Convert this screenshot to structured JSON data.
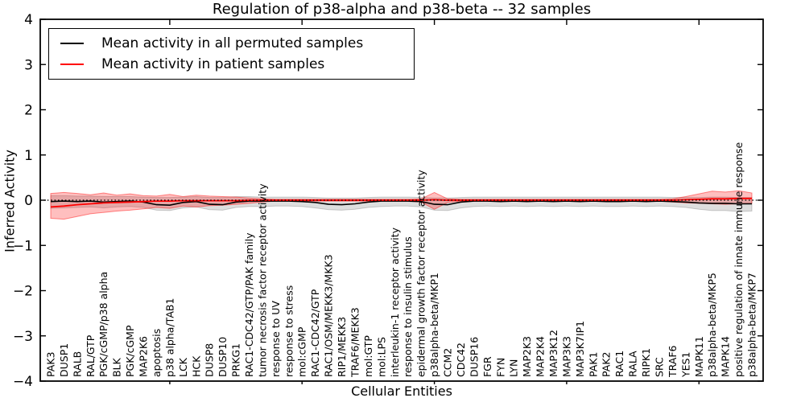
{
  "chart_data": {
    "type": "line",
    "title": "Regulation of p38-alpha and p38-beta -- 32 samples",
    "xlabel": "Cellular Entities",
    "ylabel": "Inferred Activity",
    "ylim": [
      -4,
      4
    ],
    "yticks": [
      4,
      3,
      2,
      1,
      0,
      -1,
      -2,
      -3,
      -4
    ],
    "ytick_labels": [
      "4",
      "3",
      "2",
      "1",
      "0",
      "−1",
      "−2",
      "−3",
      "−4"
    ],
    "xticks_at_category_index": [
      9,
      19,
      29,
      39,
      49
    ],
    "grid": false,
    "legend_position": "upper left",
    "background_color": "#ffffff",
    "axis_color": "#000000",
    "zero_line": {
      "color": "#000000",
      "style": "dotted",
      "y": 0
    },
    "categories": [
      "PAK3",
      "DUSP1",
      "RALB",
      "RAL/GTP",
      "PGK/cGMP/p38 alpha",
      "BLK",
      "PGK/cGMP",
      "MAP2K6",
      "apoptosis",
      "p38 alpha/TAB1",
      "LCK",
      "HCK",
      "DUSP8",
      "DUSP10",
      "PRKG1",
      "RAC1-CDC42/GTP/PAK family",
      "tumor necrosis factor receptor activity",
      "response to UV",
      "response to stress",
      "mol:cGMP",
      "RAC1-CDC42/GTP",
      "RAC1/OSM/MEKK3/MKK3",
      "RIP1/MEKK3",
      "TRAF6/MEKK3",
      "mol:GTP",
      "mol:LPS",
      "interleukin-1 receptor activity",
      "response to insulin stimulus",
      "epidermal growth factor receptor activity",
      "p38alpha-beta/MKP1",
      "CCM2",
      "CDC42",
      "DUSP16",
      "FGR",
      "FYN",
      "LYN",
      "MAP2K3",
      "MAP2K4",
      "MAP3K12",
      "MAP3K3",
      "MAP3K7IP1",
      "PAK1",
      "PAK2",
      "RAC1",
      "RALA",
      "RIPK1",
      "SRC",
      "TRAF6",
      "YES1",
      "MAPK11",
      "p38alpha-beta/MKP5",
      "MAPK14",
      "positive regulation of innate immune response",
      "p38alpha-beta/MKP7"
    ],
    "series": [
      {
        "name": "Mean activity in all permuted samples",
        "color": "#000000",
        "band_color": "#000000",
        "band_alpha": 0.13,
        "values": [
          -0.03,
          -0.02,
          -0.03,
          -0.02,
          -0.04,
          -0.03,
          -0.02,
          -0.04,
          -0.1,
          -0.11,
          -0.05,
          -0.03,
          -0.09,
          -0.1,
          -0.04,
          -0.02,
          -0.02,
          -0.02,
          -0.02,
          -0.03,
          -0.05,
          -0.09,
          -0.1,
          -0.08,
          -0.04,
          -0.02,
          -0.02,
          -0.02,
          -0.03,
          -0.09,
          -0.1,
          -0.04,
          -0.02,
          -0.02,
          -0.03,
          -0.02,
          -0.03,
          -0.02,
          -0.03,
          -0.02,
          -0.03,
          -0.02,
          -0.03,
          -0.03,
          -0.02,
          -0.03,
          -0.02,
          -0.03,
          -0.04,
          -0.06,
          -0.07,
          -0.07,
          -0.08,
          -0.08
        ],
        "upper": [
          0.1,
          0.1,
          0.09,
          0.09,
          0.08,
          0.08,
          0.08,
          0.07,
          0.06,
          0.06,
          0.07,
          0.08,
          0.06,
          0.06,
          0.08,
          0.08,
          0.07,
          0.07,
          0.07,
          0.07,
          0.06,
          0.05,
          0.05,
          0.05,
          0.06,
          0.07,
          0.07,
          0.07,
          0.06,
          0.05,
          0.05,
          0.06,
          0.07,
          0.07,
          0.07,
          0.07,
          0.07,
          0.07,
          0.07,
          0.07,
          0.07,
          0.07,
          0.07,
          0.07,
          0.07,
          0.07,
          0.07,
          0.06,
          0.06,
          0.06,
          0.07,
          0.07,
          0.06,
          0.06
        ],
        "lower": [
          -0.18,
          -0.17,
          -0.16,
          -0.15,
          -0.17,
          -0.15,
          -0.14,
          -0.16,
          -0.22,
          -0.23,
          -0.17,
          -0.15,
          -0.21,
          -0.22,
          -0.16,
          -0.14,
          -0.14,
          -0.13,
          -0.13,
          -0.14,
          -0.17,
          -0.21,
          -0.22,
          -0.2,
          -0.16,
          -0.14,
          -0.13,
          -0.13,
          -0.15,
          -0.22,
          -0.23,
          -0.17,
          -0.14,
          -0.13,
          -0.14,
          -0.13,
          -0.14,
          -0.13,
          -0.14,
          -0.13,
          -0.14,
          -0.13,
          -0.14,
          -0.14,
          -0.13,
          -0.14,
          -0.13,
          -0.14,
          -0.16,
          -0.2,
          -0.23,
          -0.23,
          -0.25,
          -0.24
        ]
      },
      {
        "name": "Mean activity in patient samples",
        "color": "#ff0000",
        "band_color": "#ff0000",
        "band_alpha": 0.25,
        "values": [
          -0.15,
          -0.13,
          -0.1,
          -0.08,
          -0.06,
          -0.05,
          -0.04,
          -0.03,
          -0.02,
          -0.02,
          -0.01,
          -0.01,
          -0.01,
          -0.01,
          -0.01,
          0,
          0,
          0,
          0,
          0,
          0,
          0,
          0,
          0,
          0,
          0,
          0,
          0,
          0,
          0.01,
          0,
          0,
          0,
          0,
          0,
          0,
          0,
          0,
          0,
          0,
          0,
          0,
          0,
          0,
          0,
          0,
          0,
          0,
          0.01,
          0.02,
          0.03,
          0.03,
          0.04,
          0.04
        ],
        "upper": [
          0.15,
          0.17,
          0.15,
          0.12,
          0.16,
          0.11,
          0.14,
          0.1,
          0.09,
          0.13,
          0.08,
          0.11,
          0.09,
          0.08,
          0.07,
          0.05,
          0.03,
          0.02,
          0.02,
          0.02,
          0.02,
          0.02,
          0.02,
          0.02,
          0.02,
          0.02,
          0.02,
          0.02,
          0.03,
          0.17,
          0.03,
          0.02,
          0.02,
          0.02,
          0.02,
          0.02,
          0.02,
          0.02,
          0.02,
          0.02,
          0.02,
          0.02,
          0.02,
          0.02,
          0.02,
          0.02,
          0.02,
          0.03,
          0.08,
          0.14,
          0.2,
          0.18,
          0.21,
          0.16
        ],
        "lower": [
          -0.4,
          -0.42,
          -0.36,
          -0.3,
          -0.27,
          -0.24,
          -0.22,
          -0.19,
          -0.16,
          -0.18,
          -0.13,
          -0.15,
          -0.12,
          -0.11,
          -0.09,
          -0.07,
          -0.04,
          -0.02,
          -0.02,
          -0.02,
          -0.02,
          -0.02,
          -0.02,
          -0.02,
          -0.02,
          -0.02,
          -0.02,
          -0.02,
          -0.04,
          -0.2,
          -0.05,
          -0.02,
          -0.02,
          -0.02,
          -0.02,
          -0.02,
          -0.02,
          -0.02,
          -0.02,
          -0.02,
          -0.02,
          -0.02,
          -0.02,
          -0.02,
          -0.02,
          -0.02,
          -0.02,
          -0.04,
          -0.06,
          -0.07,
          -0.08,
          -0.09,
          -0.08,
          -0.07
        ]
      }
    ]
  }
}
